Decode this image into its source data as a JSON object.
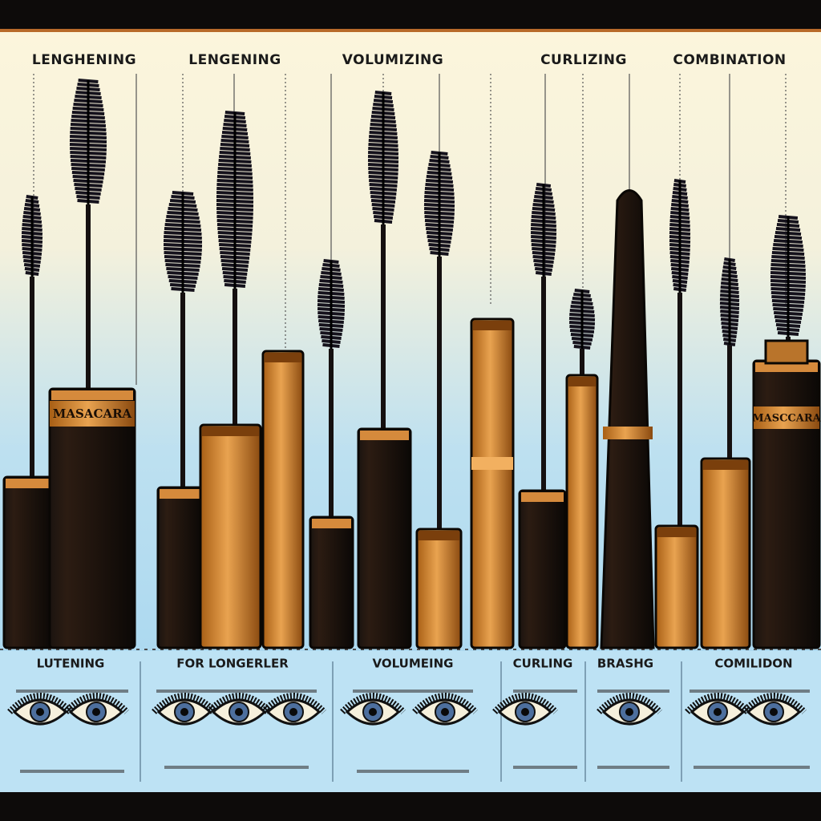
{
  "header": {
    "labels": [
      "LENGHENING",
      "LENGENING",
      "VOLUMIZING",
      "CURLIZING",
      "COMBINATION"
    ]
  },
  "products": {
    "labels": [
      "MASACARA",
      "MASCCARA"
    ]
  },
  "footer": {
    "labels": [
      "LUTENING",
      "FOR LONGERLER",
      "VOLUMEING",
      "CURLING",
      "BRASHG",
      "COMILIDON"
    ]
  }
}
